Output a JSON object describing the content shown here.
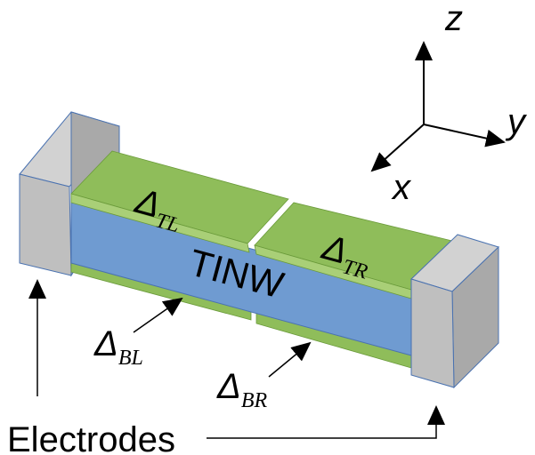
{
  "axes": {
    "z": "z",
    "y": "y",
    "x": "x"
  },
  "wire_label": "TINW",
  "gaps": [
    {
      "symbol": "Δ",
      "subscript": "TL"
    },
    {
      "symbol": "Δ",
      "subscript": "TR"
    },
    {
      "symbol": "Δ",
      "subscript": "BL"
    },
    {
      "symbol": "Δ",
      "subscript": "BR"
    }
  ],
  "electrodes_label": "Electrodes",
  "colors": {
    "nanowire": "#6f9bd1",
    "nanowire_edge": "#4a72b0",
    "superconductor": "#8fbd5a",
    "superconductor_light": "#a9cf77",
    "electrode": "#bfbfbf",
    "electrode_light": "#d2d2d2",
    "electrode_dark": "#a9a9a9",
    "arrow": "#000000"
  }
}
